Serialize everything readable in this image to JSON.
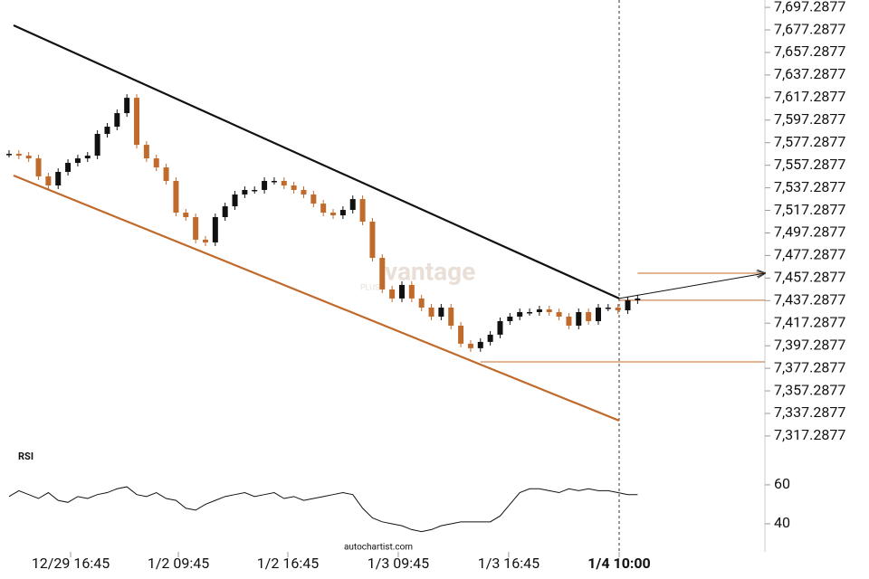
{
  "chart_data": [
    {
      "type": "candlestick",
      "watermark": "vantage",
      "watermark_sub": "PLUS",
      "credit": "autochartist.com",
      "xlim": [
        -0.92,
        76.96
      ],
      "ylim": [
        7310,
        7703
      ],
      "xticks": [
        {
          "value": 6.27,
          "label": "12/29 16:45"
        },
        {
          "value": 17.24,
          "label": "1/2 09:45"
        },
        {
          "value": 28.39,
          "label": "1/2 16:45"
        },
        {
          "value": 39.63,
          "label": "1/3 09:45"
        },
        {
          "value": 50.87,
          "label": "1/3 16:45"
        },
        {
          "value": 62.12,
          "label": "1/4 10:00"
        }
      ],
      "yticks": [
        {
          "value": 7697.2877,
          "label": "7,697.2877"
        },
        {
          "value": 7677.2877,
          "label": "7,677.2877"
        },
        {
          "value": 7657.2877,
          "label": "7,657.2877"
        },
        {
          "value": 7637.2877,
          "label": "7,637.2877"
        },
        {
          "value": 7617.2877,
          "label": "7,617.2877"
        },
        {
          "value": 7597.2877,
          "label": "7,597.2877"
        },
        {
          "value": 7577.2877,
          "label": "7,577.2877"
        },
        {
          "value": 7557.2877,
          "label": "7,557.2877"
        },
        {
          "value": 7537.2877,
          "label": "7,537.2877"
        },
        {
          "value": 7517.2877,
          "label": "7,517.2877"
        },
        {
          "value": 7497.2877,
          "label": "7,497.2877"
        },
        {
          "value": 7477.2877,
          "label": "7,477.2877"
        },
        {
          "value": 7457.2877,
          "label": "7,457.2877"
        },
        {
          "value": 7437.2877,
          "label": "7,437.2877"
        },
        {
          "value": 7417.2877,
          "label": "7,417.2877"
        },
        {
          "value": 7397.2877,
          "label": "7,397.2877"
        },
        {
          "value": 7377.2877,
          "label": "7,377.2877"
        },
        {
          "value": 7357.2877,
          "label": "7,357.2877"
        },
        {
          "value": 7337.2877,
          "label": "7,337.2877"
        },
        {
          "value": 7317.2877,
          "label": "7,317.2877"
        }
      ],
      "up_color": "#111111",
      "down_color": "#c06a2b",
      "close": [
        7567.4,
        7565.8,
        7563.4,
        7547.4,
        7539.4,
        7551.4,
        7559.4,
        7563.4,
        7565.8,
        7585.1,
        7591.5,
        7603.5,
        7617.1,
        7575.4,
        7563.4,
        7555.4,
        7543.4,
        7515.3,
        7511.3,
        7491.3,
        7488.9,
        7511.3,
        7520.9,
        7531.4,
        7535.4,
        7535.4,
        7543.4,
        7543.4,
        7539.4,
        7535.4,
        7531.4,
        7523.3,
        7515.3,
        7512.9,
        7517.7,
        7527.3,
        7507.3,
        7475.2,
        7447.2,
        7439.2,
        7451.2,
        7439.2,
        7431.1,
        7423.1,
        7431.1,
        7415.1,
        7399.1,
        7395.1,
        7400.7,
        7407.1,
        7419.1,
        7423.1,
        7427.1,
        7427.1,
        7429.5,
        7427.1,
        7423.1,
        7415.1,
        7427.1,
        7419.1,
        7431.1,
        7431.1,
        7428.7,
        7437.6,
        7439.2
      ],
      "lines": [
        {
          "x": [
            0.46,
            62.12
          ],
          "y": [
            7681.3,
            7439.2
          ],
          "color": "#111111"
        },
        {
          "x": [
            0.46,
            62.12
          ],
          "y": [
            7548.2,
            7330.9
          ],
          "color": "#c06a2b"
        },
        {
          "x": [
            62.12,
            76.96
          ],
          "y": [
            7437.6,
            7437.6
          ],
          "color": "#c06a2b"
        },
        {
          "x": [
            48.0,
            76.96
          ],
          "y": [
            7383.0,
            7383.0
          ],
          "color": "#c06a2b"
        },
        {
          "x": [
            64.0,
            76.96
          ],
          "y": [
            7461.6,
            7461.6
          ],
          "color": "#c06a2b"
        },
        {
          "x": [
            62.12,
            76.96
          ],
          "y": [
            7439.2,
            7461.6
          ],
          "color": "#111111"
        }
      ]
    },
    {
      "type": "line",
      "title": "RSI",
      "ylim": [
        27.9,
        76.7
      ],
      "yticks": [
        40,
        60
      ],
      "color": "#111111",
      "values": [
        54,
        57,
        55,
        53,
        56,
        52,
        51,
        54,
        53,
        55,
        56,
        58,
        59,
        55,
        54,
        56,
        53,
        52,
        48,
        47,
        50,
        52,
        54,
        55,
        56,
        54,
        55,
        56,
        53,
        54,
        52,
        53,
        54,
        55,
        56,
        55,
        48,
        43,
        41,
        40,
        39,
        37,
        36,
        37,
        39,
        40,
        41,
        41,
        41,
        41,
        44,
        50,
        56,
        58,
        58,
        57,
        56,
        58,
        57,
        58,
        57,
        57,
        56,
        55,
        55
      ]
    }
  ]
}
